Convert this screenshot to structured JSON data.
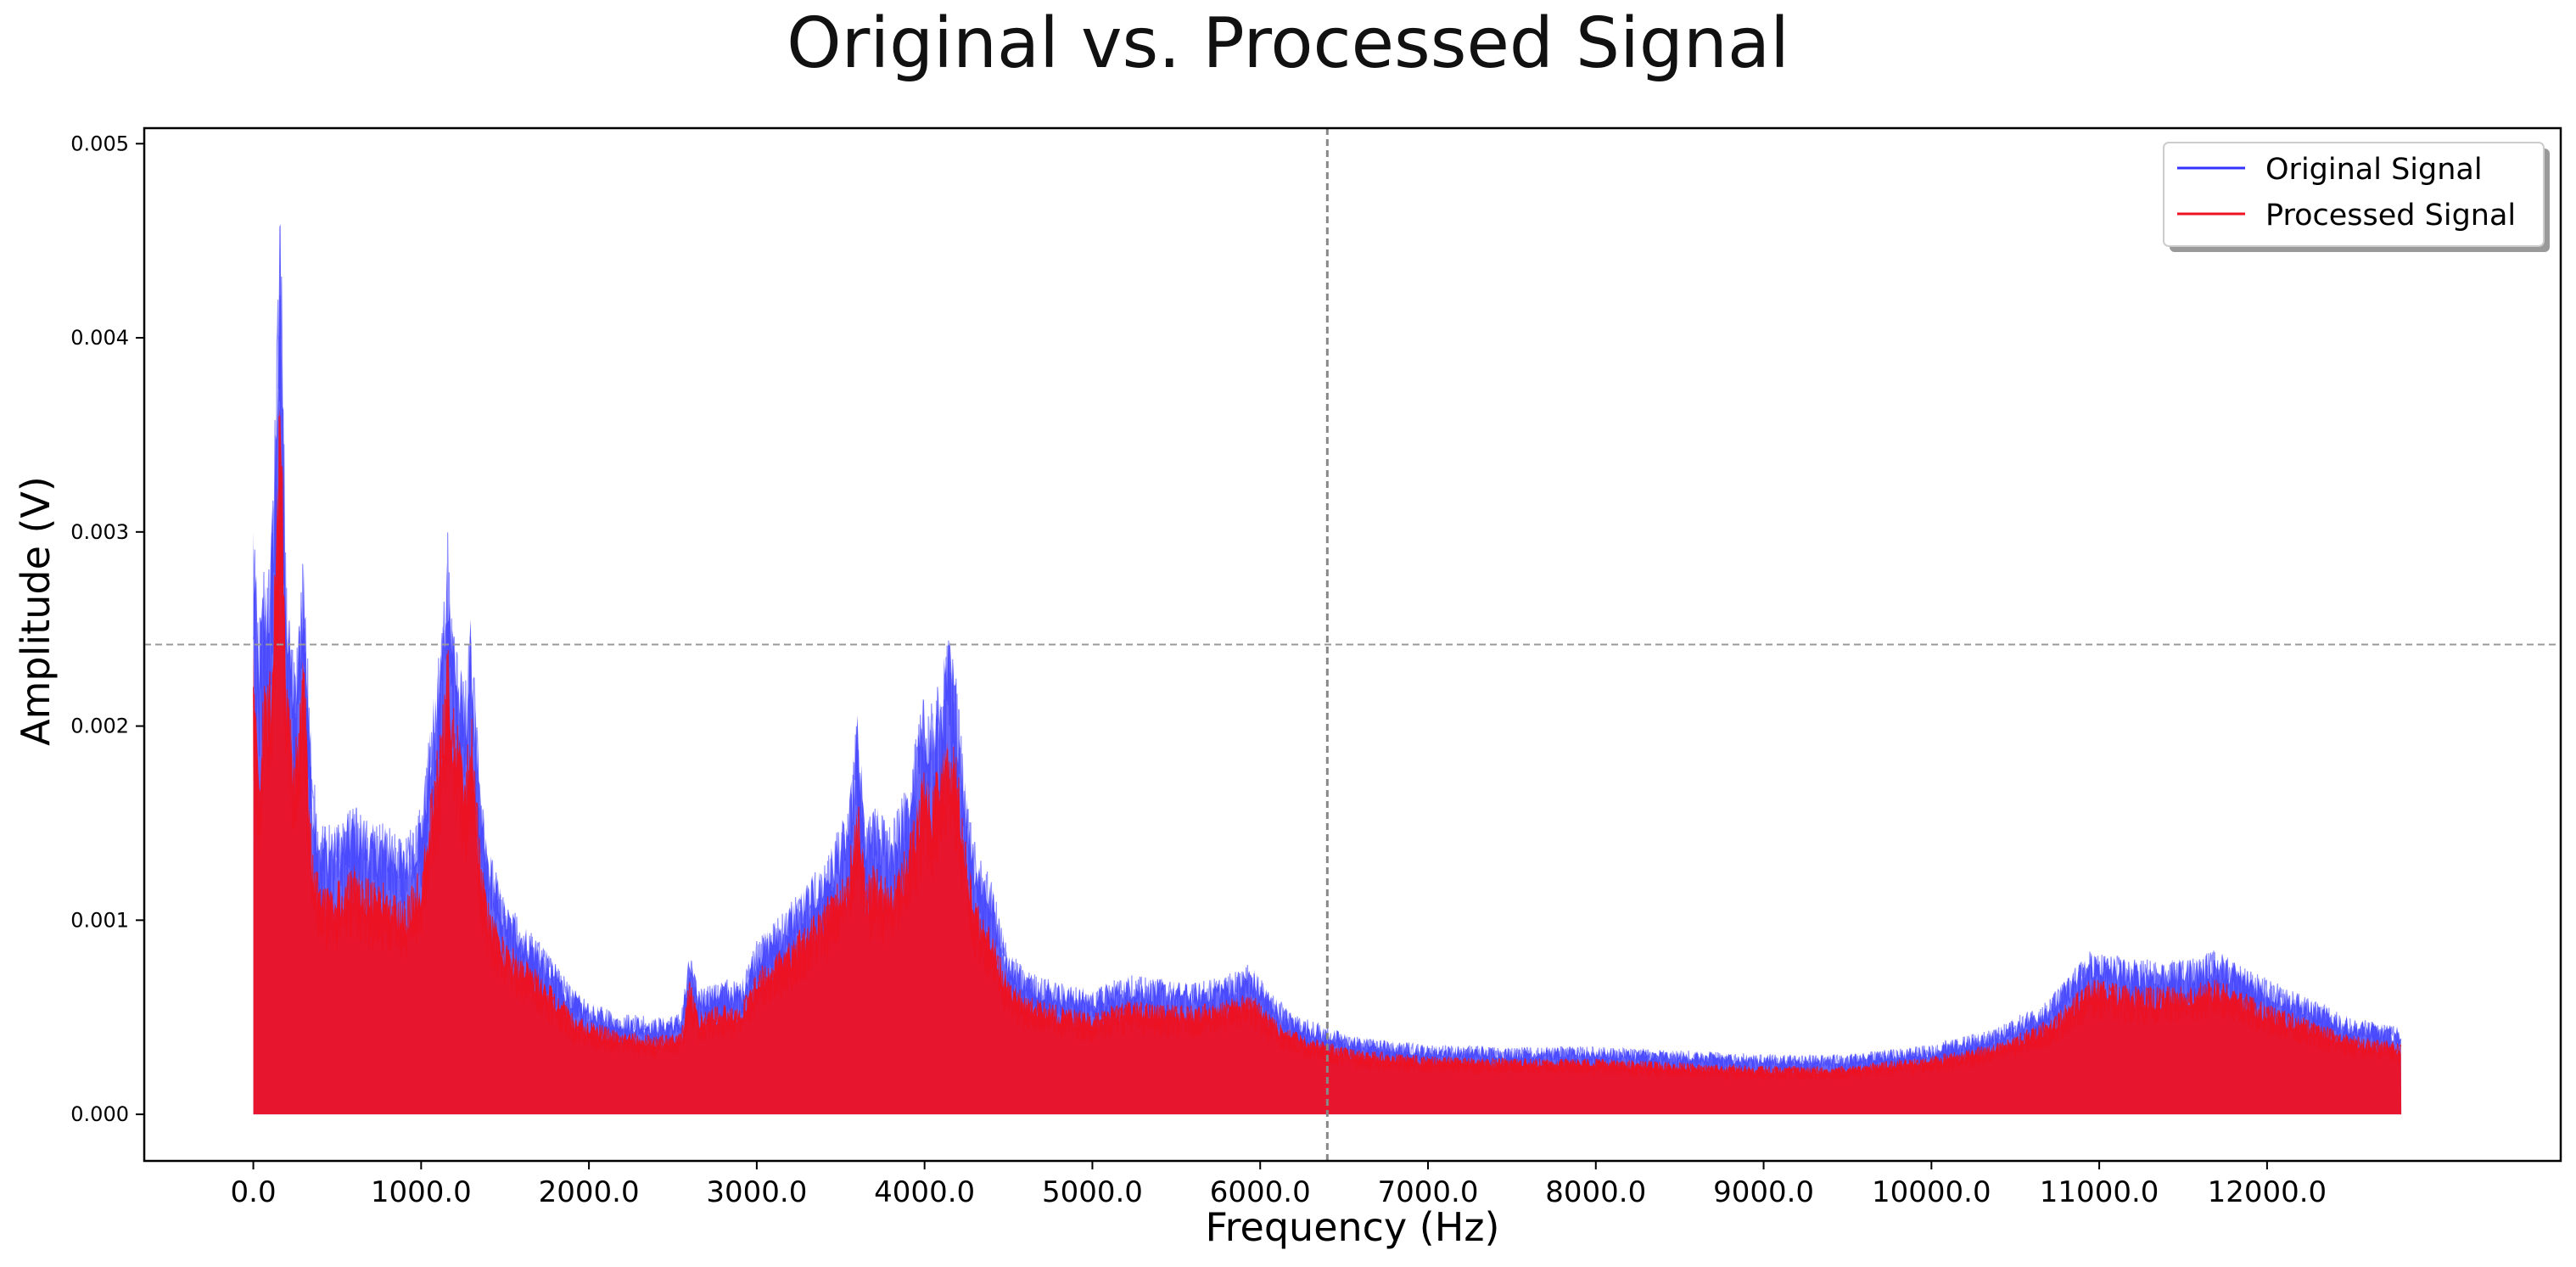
{
  "chart_data": {
    "type": "area",
    "title": "Original vs. Processed Signal",
    "xlabel": "Frequency (Hz)",
    "ylabel": "Amplitude (V)",
    "xlim": [
      -650,
      13750
    ],
    "ylim": [
      -0.00024,
      0.00508
    ],
    "x_ticks": [
      0,
      1000,
      2000,
      3000,
      4000,
      5000,
      6000,
      7000,
      8000,
      9000,
      10000,
      11000,
      12000
    ],
    "x_tick_labels": [
      "0.0",
      "1000.0",
      "2000.0",
      "3000.0",
      "4000.0",
      "5000.0",
      "6000.0",
      "7000.0",
      "8000.0",
      "9000.0",
      "10000.0",
      "11000.0",
      "12000.0"
    ],
    "y_ticks": [
      0,
      0.001,
      0.002,
      0.003,
      0.004,
      0.005
    ],
    "y_tick_labels": [
      "0.000",
      "0.001",
      "0.002",
      "0.003",
      "0.004",
      "0.005"
    ],
    "grid": false,
    "legend": {
      "position": "top-right",
      "entries": [
        "Original Signal",
        "Processed Signal"
      ]
    },
    "crosshair": {
      "x": 6400,
      "y": 0.00242
    },
    "series": [
      {
        "name": "Original Signal",
        "color": "#3333ff",
        "envelope_x": [
          0,
          30,
          60,
          100,
          130,
          160,
          200,
          250,
          300,
          350,
          400,
          500,
          600,
          700,
          800,
          900,
          1000,
          1080,
          1130,
          1160,
          1180,
          1220,
          1260,
          1300,
          1350,
          1400,
          1500,
          1600,
          1700,
          1800,
          1900,
          2000,
          2200,
          2400,
          2550,
          2600,
          2650,
          2800,
          2900,
          3000,
          3200,
          3400,
          3550,
          3600,
          3650,
          3700,
          3800,
          3900,
          4000,
          4050,
          4100,
          4150,
          4200,
          4250,
          4300,
          4400,
          4500,
          4600,
          4800,
          5000,
          5200,
          5400,
          5600,
          5800,
          5950,
          6000,
          6100,
          6200,
          6400,
          6600,
          7000,
          7500,
          8000,
          8500,
          9000,
          9500,
          10000,
          10400,
          10700,
          10950,
          11200,
          11500,
          11700,
          12000,
          12300,
          12500,
          12800
        ],
        "envelope_y": [
          0.0032,
          0.0025,
          0.0028,
          0.0029,
          0.0036,
          0.0048,
          0.0027,
          0.0023,
          0.003,
          0.0018,
          0.0015,
          0.0015,
          0.0016,
          0.0015,
          0.0015,
          0.0014,
          0.0016,
          0.0022,
          0.0026,
          0.0031,
          0.0027,
          0.0024,
          0.0022,
          0.0026,
          0.0017,
          0.0014,
          0.0011,
          0.001,
          0.0009,
          0.00078,
          0.00065,
          0.00058,
          0.00052,
          0.0005,
          0.00052,
          0.00085,
          0.00065,
          0.0007,
          0.00068,
          0.0009,
          0.0011,
          0.0013,
          0.0016,
          0.0021,
          0.0015,
          0.0016,
          0.0015,
          0.0017,
          0.0022,
          0.0021,
          0.0023,
          0.0025,
          0.0022,
          0.0017,
          0.0014,
          0.0012,
          0.00085,
          0.00075,
          0.00068,
          0.00065,
          0.00072,
          0.0007,
          0.00068,
          0.00072,
          0.00078,
          0.0007,
          0.0006,
          0.00052,
          0.00045,
          0.0004,
          0.00036,
          0.00035,
          0.00035,
          0.00033,
          0.00031,
          0.00031,
          0.00036,
          0.00045,
          0.0006,
          0.00085,
          0.0008,
          0.0008,
          0.00085,
          0.0007,
          0.00058,
          0.0005,
          0.00045
        ]
      },
      {
        "name": "Processed Signal",
        "color": "#ee1122",
        "envelope_x": [
          0,
          30,
          60,
          100,
          130,
          160,
          200,
          250,
          300,
          350,
          400,
          500,
          600,
          700,
          800,
          900,
          1000,
          1080,
          1130,
          1160,
          1180,
          1220,
          1260,
          1300,
          1350,
          1400,
          1500,
          1600,
          1700,
          1800,
          1900,
          2000,
          2200,
          2400,
          2550,
          2600,
          2650,
          2800,
          2900,
          3000,
          3200,
          3400,
          3550,
          3600,
          3650,
          3700,
          3800,
          3900,
          4000,
          4050,
          4100,
          4150,
          4200,
          4250,
          4300,
          4400,
          4500,
          4600,
          4800,
          5000,
          5200,
          5400,
          5600,
          5800,
          5950,
          6000,
          6100,
          6200,
          6400,
          6600,
          7000,
          7500,
          8000,
          8500,
          9000,
          9500,
          10000,
          10400,
          10700,
          10950,
          11200,
          11500,
          11700,
          12000,
          12300,
          12500,
          12800
        ],
        "envelope_y": [
          0.0025,
          0.0018,
          0.0022,
          0.0023,
          0.0029,
          0.0039,
          0.0022,
          0.0019,
          0.0024,
          0.0014,
          0.0012,
          0.0012,
          0.0013,
          0.0012,
          0.0012,
          0.0011,
          0.0013,
          0.0018,
          0.0021,
          0.0025,
          0.0022,
          0.002,
          0.0018,
          0.0021,
          0.0014,
          0.0011,
          0.0009,
          0.00082,
          0.00074,
          0.00064,
          0.00053,
          0.00048,
          0.00043,
          0.00041,
          0.00043,
          0.0007,
          0.00053,
          0.00057,
          0.00055,
          0.00074,
          0.0009,
          0.0011,
          0.0013,
          0.0017,
          0.0012,
          0.0013,
          0.0012,
          0.0014,
          0.0018,
          0.0017,
          0.0019,
          0.002,
          0.0018,
          0.0014,
          0.0011,
          0.00098,
          0.0007,
          0.00062,
          0.00056,
          0.00053,
          0.00059,
          0.00057,
          0.00056,
          0.00059,
          0.00064,
          0.00057,
          0.00049,
          0.00043,
          0.00037,
          0.00033,
          0.0003,
          0.00029,
          0.00029,
          0.00027,
          0.00025,
          0.00025,
          0.0003,
          0.00037,
          0.00049,
          0.0007,
          0.00066,
          0.00066,
          0.0007,
          0.00057,
          0.00048,
          0.00041,
          0.00037
        ]
      }
    ]
  }
}
